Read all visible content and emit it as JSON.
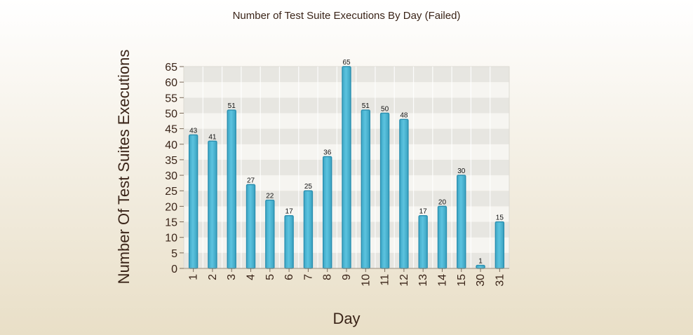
{
  "chart_data": {
    "type": "bar",
    "title": "Number of Test Suite Executions By Day (Failed)",
    "xlabel": "Day",
    "ylabel": "Number Of Test Suites Executions",
    "categories": [
      "1",
      "2",
      "3",
      "4",
      "5",
      "6",
      "7",
      "8",
      "9",
      "10",
      "11",
      "12",
      "13",
      "14",
      "15",
      "30",
      "31"
    ],
    "values": [
      43,
      41,
      51,
      27,
      22,
      17,
      25,
      36,
      65,
      51,
      50,
      48,
      17,
      20,
      30,
      1,
      15
    ],
    "ylim": [
      0,
      65
    ],
    "yticks": [
      0,
      5,
      10,
      15,
      20,
      25,
      30,
      35,
      40,
      45,
      50,
      55,
      60,
      65
    ],
    "grid": true,
    "legend": "none",
    "colors": {
      "bar_fill": "#4db6d3",
      "bar_stroke": "#2a8fb0",
      "band_dark": "#e7e6e1",
      "band_light": "#f6f5f1",
      "text": "#3a2418"
    }
  }
}
